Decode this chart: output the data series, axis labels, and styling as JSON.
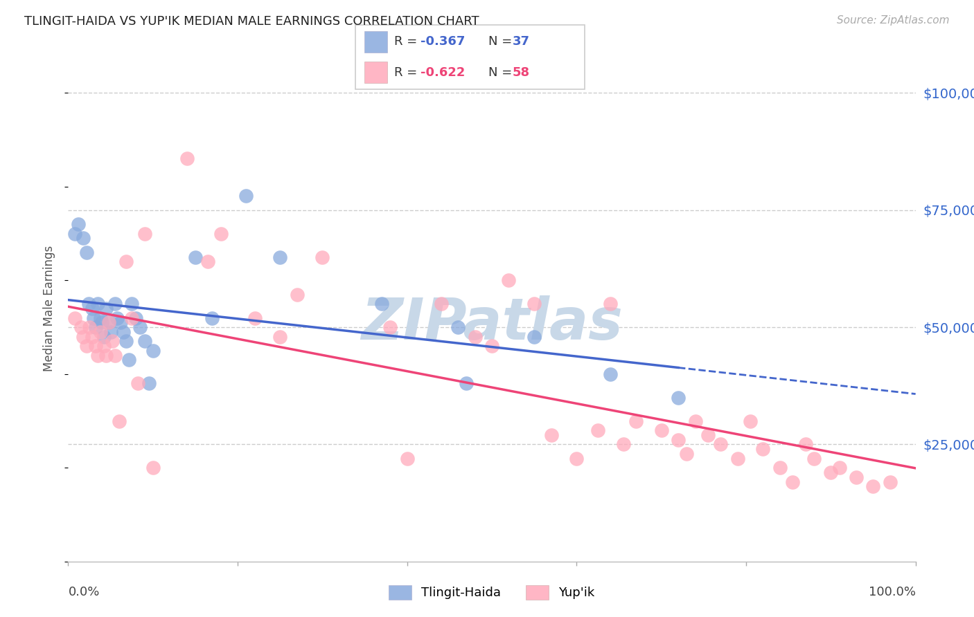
{
  "title": "TLINGIT-HAIDA VS YUP'IK MEDIAN MALE EARNINGS CORRELATION CHART",
  "source": "Source: ZipAtlas.com",
  "ylabel": "Median Male Earnings",
  "ytick_values": [
    25000,
    50000,
    75000,
    100000
  ],
  "ytick_labels": [
    "$25,000",
    "$50,000",
    "$75,000",
    "$100,000"
  ],
  "ymin": 0,
  "ymax": 108000,
  "xmin": 0.0,
  "xmax": 1.0,
  "blue_scatter_color": "#88AADD",
  "pink_scatter_color": "#FFAABB",
  "blue_line_color": "#4466CC",
  "pink_line_color": "#EE4477",
  "right_axis_color": "#3366CC",
  "grid_color": "#CCCCCC",
  "watermark_color": "#C8D8E8",
  "tlingit_haida_x": [
    0.008,
    0.012,
    0.018,
    0.022,
    0.024,
    0.028,
    0.03,
    0.032,
    0.035,
    0.038,
    0.04,
    0.042,
    0.045,
    0.048,
    0.05,
    0.055,
    0.058,
    0.062,
    0.065,
    0.068,
    0.072,
    0.075,
    0.08,
    0.085,
    0.09,
    0.095,
    0.1,
    0.15,
    0.17,
    0.21,
    0.25,
    0.37,
    0.46,
    0.47,
    0.55,
    0.64,
    0.72
  ],
  "tlingit_haida_y": [
    70000,
    72000,
    69000,
    66000,
    55000,
    54000,
    52000,
    50000,
    55000,
    52000,
    51000,
    48000,
    54000,
    51000,
    49000,
    55000,
    52000,
    51000,
    49000,
    47000,
    43000,
    55000,
    52000,
    50000,
    47000,
    38000,
    45000,
    65000,
    52000,
    78000,
    65000,
    55000,
    50000,
    38000,
    48000,
    40000,
    35000
  ],
  "yupik_x": [
    0.008,
    0.015,
    0.018,
    0.022,
    0.025,
    0.028,
    0.032,
    0.035,
    0.038,
    0.042,
    0.045,
    0.048,
    0.052,
    0.055,
    0.06,
    0.068,
    0.075,
    0.082,
    0.09,
    0.1,
    0.14,
    0.165,
    0.18,
    0.22,
    0.25,
    0.27,
    0.3,
    0.38,
    0.4,
    0.44,
    0.48,
    0.5,
    0.52,
    0.55,
    0.57,
    0.6,
    0.625,
    0.64,
    0.655,
    0.67,
    0.7,
    0.72,
    0.73,
    0.74,
    0.755,
    0.77,
    0.79,
    0.805,
    0.82,
    0.84,
    0.855,
    0.87,
    0.88,
    0.9,
    0.91,
    0.93,
    0.95,
    0.97
  ],
  "yupik_y": [
    52000,
    50000,
    48000,
    46000,
    50000,
    48000,
    46000,
    44000,
    49000,
    46000,
    44000,
    51000,
    47000,
    44000,
    30000,
    64000,
    52000,
    38000,
    70000,
    20000,
    86000,
    64000,
    70000,
    52000,
    48000,
    57000,
    65000,
    50000,
    22000,
    55000,
    48000,
    46000,
    60000,
    55000,
    27000,
    22000,
    28000,
    55000,
    25000,
    30000,
    28000,
    26000,
    23000,
    30000,
    27000,
    25000,
    22000,
    30000,
    24000,
    20000,
    17000,
    25000,
    22000,
    19000,
    20000,
    18000,
    16000,
    17000
  ]
}
